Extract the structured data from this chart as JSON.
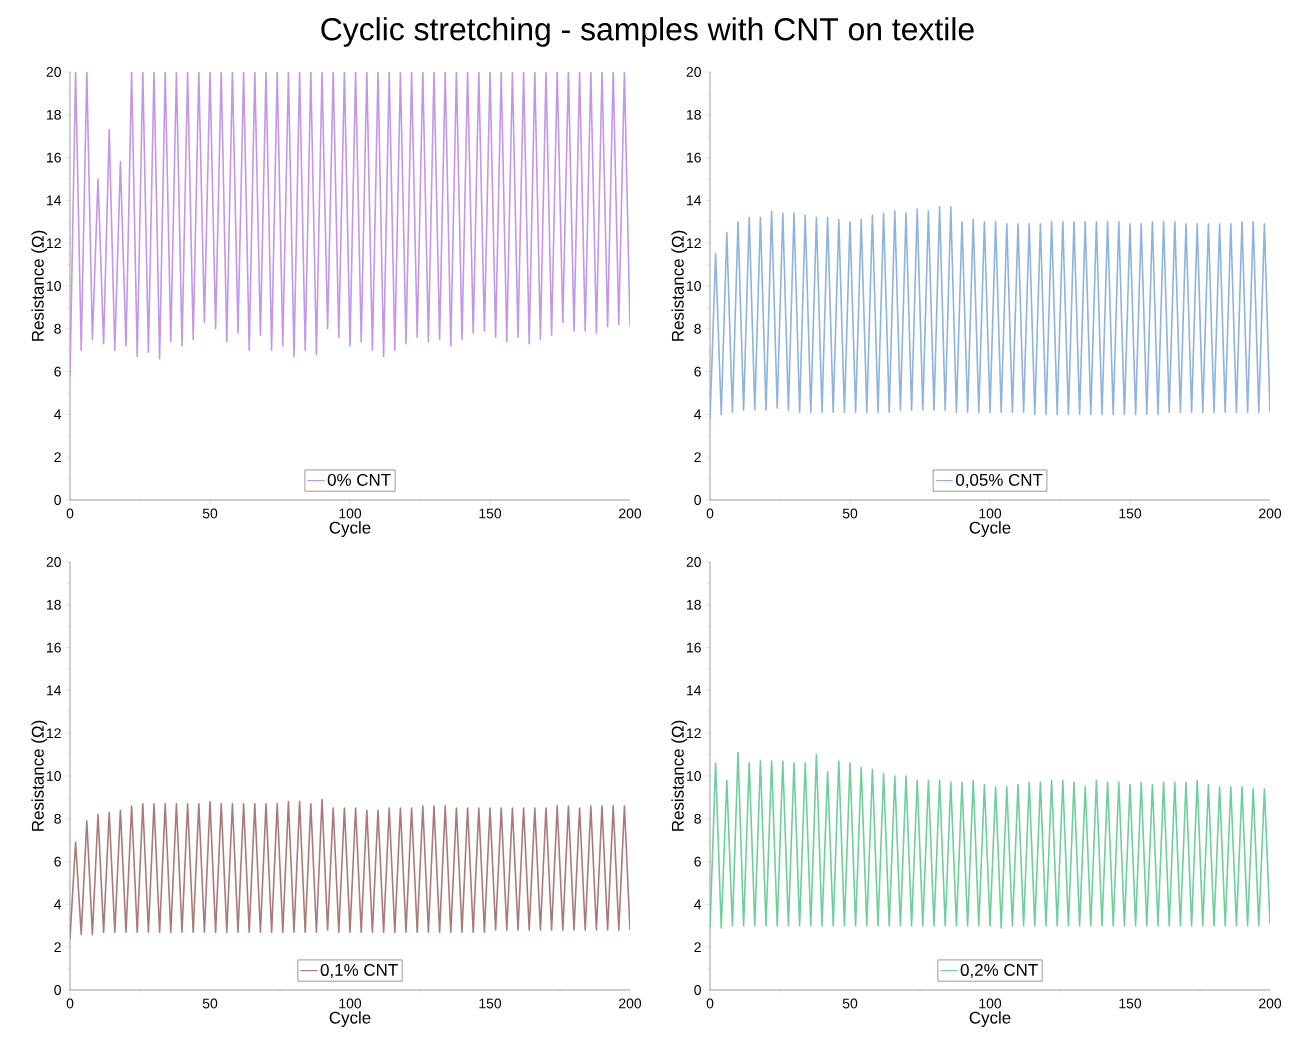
{
  "chart_data": [
    {
      "type": "line",
      "title": "Cyclic stretching - samples with CNT on textile",
      "xlabel": "Cycle",
      "ylabel": "Resistance (Ω)",
      "xlim": [
        0,
        200
      ],
      "ylim": [
        0,
        20
      ],
      "xticks": [
        0,
        50,
        100,
        150,
        200
      ],
      "yticks": [
        0,
        2,
        4,
        6,
        8,
        10,
        12,
        14,
        16,
        18,
        20
      ],
      "legend": "bottom",
      "marker": "none",
      "line_style": "solid",
      "x": [
        0,
        2,
        4,
        6,
        8,
        10,
        12,
        14,
        16,
        18,
        20,
        22,
        24,
        26,
        28,
        30,
        32,
        34,
        36,
        38,
        40,
        42,
        44,
        46,
        48,
        50,
        52,
        54,
        56,
        58,
        60,
        62,
        64,
        66,
        68,
        70,
        72,
        74,
        76,
        78,
        80,
        82,
        84,
        86,
        88,
        90,
        92,
        94,
        96,
        98,
        100,
        102,
        104,
        106,
        108,
        110,
        112,
        114,
        116,
        118,
        120,
        122,
        124,
        126,
        128,
        130,
        132,
        134,
        136,
        138,
        140,
        142,
        144,
        146,
        148,
        150,
        152,
        154,
        156,
        158,
        160,
        162,
        164,
        166,
        168,
        170,
        172,
        174,
        176,
        178,
        180,
        182,
        184,
        186,
        188,
        190,
        192,
        194,
        196,
        198,
        200
      ],
      "series": [
        {
          "name": "0% CNT",
          "color": "#c397e6",
          "values": [
            5.8,
            20,
            7.0,
            20,
            7.5,
            15.0,
            7.3,
            17.3,
            7.0,
            15.8,
            7.2,
            20,
            6.7,
            20,
            6.9,
            20,
            6.6,
            20,
            7.4,
            20,
            7.2,
            20,
            7.5,
            20,
            8.3,
            20,
            8.0,
            20,
            7.4,
            20,
            7.8,
            20,
            7.0,
            20,
            7.7,
            20,
            7.0,
            20,
            7.2,
            20,
            6.7,
            20,
            7.0,
            20,
            6.8,
            20,
            8.0,
            20,
            7.6,
            20,
            7.2,
            20,
            7.4,
            20,
            7.0,
            20,
            6.7,
            20,
            7.0,
            20,
            7.3,
            20,
            7.6,
            20,
            7.4,
            20,
            7.5,
            20,
            7.2,
            20,
            7.5,
            20,
            7.8,
            20,
            7.9,
            20,
            7.6,
            20,
            7.4,
            20,
            7.6,
            20,
            7.3,
            20,
            7.5,
            20,
            7.7,
            20,
            8.3,
            20,
            7.9,
            20,
            7.9,
            20,
            7.8,
            20,
            8.1,
            20,
            8.2,
            20,
            8.1
          ]
        }
      ]
    },
    {
      "type": "line",
      "xlabel": "Cycle",
      "ylabel": "Resistance (Ω)",
      "xlim": [
        0,
        200
      ],
      "ylim": [
        0,
        20
      ],
      "xticks": [
        0,
        50,
        100,
        150,
        200
      ],
      "yticks": [
        0,
        2,
        4,
        6,
        8,
        10,
        12,
        14,
        16,
        18,
        20
      ],
      "legend": "bottom",
      "marker": "none",
      "line_style": "solid",
      "x": [
        0,
        2,
        4,
        6,
        8,
        10,
        12,
        14,
        16,
        18,
        20,
        22,
        24,
        26,
        28,
        30,
        32,
        34,
        36,
        38,
        40,
        42,
        44,
        46,
        48,
        50,
        52,
        54,
        56,
        58,
        60,
        62,
        64,
        66,
        68,
        70,
        72,
        74,
        76,
        78,
        80,
        82,
        84,
        86,
        88,
        90,
        92,
        94,
        96,
        98,
        100,
        102,
        104,
        106,
        108,
        110,
        112,
        114,
        116,
        118,
        120,
        122,
        124,
        126,
        128,
        130,
        132,
        134,
        136,
        138,
        140,
        142,
        144,
        146,
        148,
        150,
        152,
        154,
        156,
        158,
        160,
        162,
        164,
        166,
        168,
        170,
        172,
        174,
        176,
        178,
        180,
        182,
        184,
        186,
        188,
        190,
        192,
        194,
        196,
        198,
        200
      ],
      "series": [
        {
          "name": "0,05% CNT",
          "color": "#8eb3dc",
          "values": [
            3.8,
            11.5,
            4.0,
            12.5,
            4.1,
            13.0,
            4.2,
            13.2,
            4.2,
            13.2,
            4.2,
            13.5,
            4.3,
            13.4,
            4.2,
            13.4,
            4.1,
            13.3,
            4.1,
            13.2,
            4.1,
            13.2,
            4.1,
            13.1,
            4.1,
            13.0,
            4.1,
            13.1,
            4.1,
            13.3,
            4.1,
            13.4,
            4.1,
            13.5,
            4.2,
            13.4,
            4.2,
            13.6,
            4.2,
            13.5,
            4.2,
            13.7,
            4.2,
            13.7,
            4.1,
            13.0,
            4.1,
            13.1,
            4.1,
            13.0,
            4.1,
            13.0,
            4.1,
            12.9,
            4.1,
            12.9,
            4.1,
            12.9,
            4.0,
            12.9,
            4.0,
            13.0,
            4.0,
            13.0,
            4.0,
            13.0,
            4.0,
            13.0,
            4.0,
            13.0,
            4.0,
            13.0,
            4.0,
            13.0,
            4.0,
            12.9,
            4.0,
            12.9,
            4.0,
            13.0,
            4.0,
            13.0,
            4.1,
            13.0,
            4.1,
            12.9,
            4.1,
            12.9,
            4.1,
            12.9,
            4.1,
            12.9,
            4.1,
            12.9,
            4.1,
            13.0,
            4.1,
            13.0,
            4.1,
            12.9,
            4.1
          ]
        }
      ]
    },
    {
      "type": "line",
      "xlabel": "Cycle",
      "ylabel": "Resistance (Ω)",
      "xlim": [
        0,
        200
      ],
      "ylim": [
        0,
        20
      ],
      "xticks": [
        0,
        50,
        100,
        150,
        200
      ],
      "yticks": [
        0,
        2,
        4,
        6,
        8,
        10,
        12,
        14,
        16,
        18,
        20
      ],
      "legend": "bottom",
      "marker": "none",
      "line_style": "solid",
      "x": [
        0,
        2,
        4,
        6,
        8,
        10,
        12,
        14,
        16,
        18,
        20,
        22,
        24,
        26,
        28,
        30,
        32,
        34,
        36,
        38,
        40,
        42,
        44,
        46,
        48,
        50,
        52,
        54,
        56,
        58,
        60,
        62,
        64,
        66,
        68,
        70,
        72,
        74,
        76,
        78,
        80,
        82,
        84,
        86,
        88,
        90,
        92,
        94,
        96,
        98,
        100,
        102,
        104,
        106,
        108,
        110,
        112,
        114,
        116,
        118,
        120,
        122,
        124,
        126,
        128,
        130,
        132,
        134,
        136,
        138,
        140,
        142,
        144,
        146,
        148,
        150,
        152,
        154,
        156,
        158,
        160,
        162,
        164,
        166,
        168,
        170,
        172,
        174,
        176,
        178,
        180,
        182,
        184,
        186,
        188,
        190,
        192,
        194,
        196,
        198,
        200
      ],
      "series": [
        {
          "name": "0,1% CNT",
          "color": "#a97b78",
          "values": [
            2.4,
            6.9,
            2.6,
            7.9,
            2.6,
            8.2,
            2.7,
            8.3,
            2.7,
            8.4,
            2.7,
            8.6,
            2.7,
            8.7,
            2.7,
            8.7,
            2.7,
            8.7,
            2.7,
            8.7,
            2.7,
            8.7,
            2.7,
            8.7,
            2.7,
            8.8,
            2.7,
            8.7,
            2.7,
            8.7,
            2.7,
            8.7,
            2.7,
            8.7,
            2.7,
            8.7,
            2.7,
            8.7,
            2.7,
            8.8,
            2.7,
            8.8,
            2.7,
            8.7,
            2.7,
            8.9,
            2.8,
            8.5,
            2.7,
            8.5,
            2.7,
            8.5,
            2.7,
            8.4,
            2.7,
            8.4,
            2.7,
            8.5,
            2.7,
            8.5,
            2.7,
            8.5,
            2.7,
            8.6,
            2.7,
            8.6,
            2.7,
            8.6,
            2.7,
            8.5,
            2.7,
            8.5,
            2.7,
            8.5,
            2.7,
            8.5,
            2.8,
            8.5,
            2.8,
            8.5,
            2.8,
            8.5,
            2.8,
            8.5,
            2.8,
            8.5,
            2.8,
            8.6,
            2.8,
            8.6,
            2.8,
            8.5,
            2.8,
            8.6,
            2.8,
            8.6,
            2.8,
            8.6,
            2.8,
            8.6,
            2.8
          ]
        }
      ]
    },
    {
      "type": "line",
      "xlabel": "Cycle",
      "ylabel": "Resistance (Ω)",
      "xlim": [
        0,
        200
      ],
      "ylim": [
        0,
        20
      ],
      "xticks": [
        0,
        50,
        100,
        150,
        200
      ],
      "yticks": [
        0,
        2,
        4,
        6,
        8,
        10,
        12,
        14,
        16,
        18,
        20
      ],
      "legend": "bottom",
      "marker": "none",
      "line_style": "solid",
      "x": [
        0,
        2,
        4,
        6,
        8,
        10,
        12,
        14,
        16,
        18,
        20,
        22,
        24,
        26,
        28,
        30,
        32,
        34,
        36,
        38,
        40,
        42,
        44,
        46,
        48,
        50,
        52,
        54,
        56,
        58,
        60,
        62,
        64,
        66,
        68,
        70,
        72,
        74,
        76,
        78,
        80,
        82,
        84,
        86,
        88,
        90,
        92,
        94,
        96,
        98,
        100,
        102,
        104,
        106,
        108,
        110,
        112,
        114,
        116,
        118,
        120,
        122,
        124,
        126,
        128,
        130,
        132,
        134,
        136,
        138,
        140,
        142,
        144,
        146,
        148,
        150,
        152,
        154,
        156,
        158,
        160,
        162,
        164,
        166,
        168,
        170,
        172,
        174,
        176,
        178,
        180,
        182,
        184,
        186,
        188,
        190,
        192,
        194,
        196,
        198,
        200
      ],
      "series": [
        {
          "name": "0,2% CNT",
          "color": "#6fcf9b",
          "values": [
            2.9,
            10.6,
            2.9,
            9.8,
            3.0,
            11.1,
            3.0,
            10.6,
            3.0,
            10.7,
            3.0,
            10.7,
            3.0,
            10.7,
            3.0,
            10.6,
            3.0,
            10.6,
            3.0,
            11.0,
            3.0,
            10.2,
            3.0,
            10.7,
            3.0,
            10.6,
            3.0,
            10.4,
            3.0,
            10.3,
            3.0,
            10.1,
            3.0,
            10.0,
            3.0,
            10.0,
            3.0,
            9.8,
            3.0,
            9.8,
            3.0,
            9.8,
            3.0,
            9.7,
            3.0,
            9.7,
            3.0,
            9.8,
            3.0,
            9.6,
            3.0,
            9.5,
            2.9,
            9.5,
            3.0,
            9.6,
            3.0,
            9.7,
            3.0,
            9.7,
            3.0,
            9.8,
            3.0,
            9.8,
            3.0,
            9.7,
            3.0,
            9.5,
            3.0,
            9.8,
            3.0,
            9.7,
            3.0,
            9.7,
            3.0,
            9.6,
            3.0,
            9.7,
            3.0,
            9.6,
            3.0,
            9.7,
            3.0,
            9.7,
            3.0,
            9.7,
            3.0,
            9.8,
            3.0,
            9.6,
            3.0,
            9.5,
            3.0,
            9.5,
            3.0,
            9.5,
            3.0,
            9.4,
            3.0,
            9.4,
            3.1
          ]
        }
      ]
    }
  ]
}
